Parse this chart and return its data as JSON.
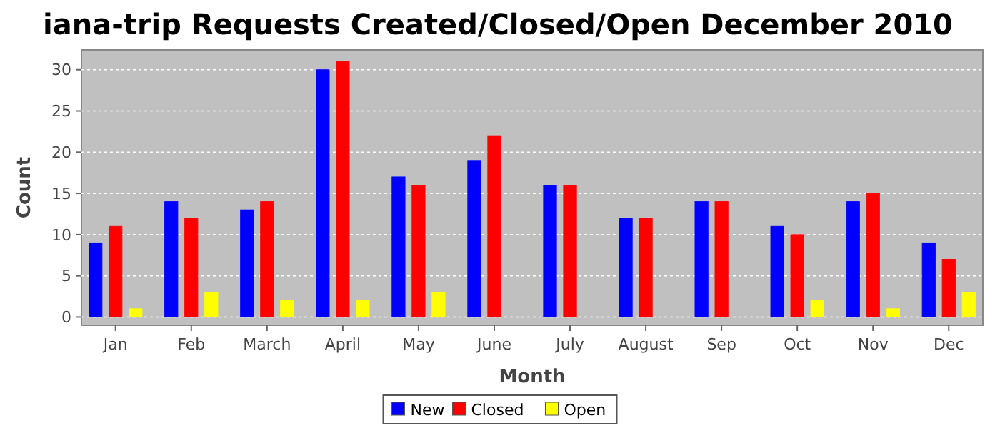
{
  "chart_data": {
    "type": "bar",
    "title": "iana-trip Requests Created/Closed/Open December 2010",
    "xlabel": "Month",
    "ylabel": "Count",
    "categories": [
      "Jan",
      "Feb",
      "March",
      "April",
      "May",
      "June",
      "July",
      "August",
      "Sep",
      "Oct",
      "Nov",
      "Dec"
    ],
    "series": [
      {
        "name": "New",
        "color": "#0000ff",
        "values": [
          9,
          14,
          13,
          30,
          17,
          19,
          16,
          12,
          14,
          11,
          14,
          9
        ]
      },
      {
        "name": "Closed",
        "color": "#ff0000",
        "values": [
          11,
          12,
          14,
          31,
          16,
          22,
          16,
          12,
          14,
          10,
          15,
          7
        ]
      },
      {
        "name": "Open",
        "color": "#ffff00",
        "values": [
          1,
          3,
          2,
          2,
          3,
          0,
          0,
          0,
          0,
          2,
          1,
          3
        ]
      }
    ],
    "ylim": [
      -1,
      32.4
    ],
    "yticks": [
      0,
      5,
      10,
      15,
      20,
      25,
      30
    ],
    "grid": "y",
    "legend": "bottom"
  }
}
